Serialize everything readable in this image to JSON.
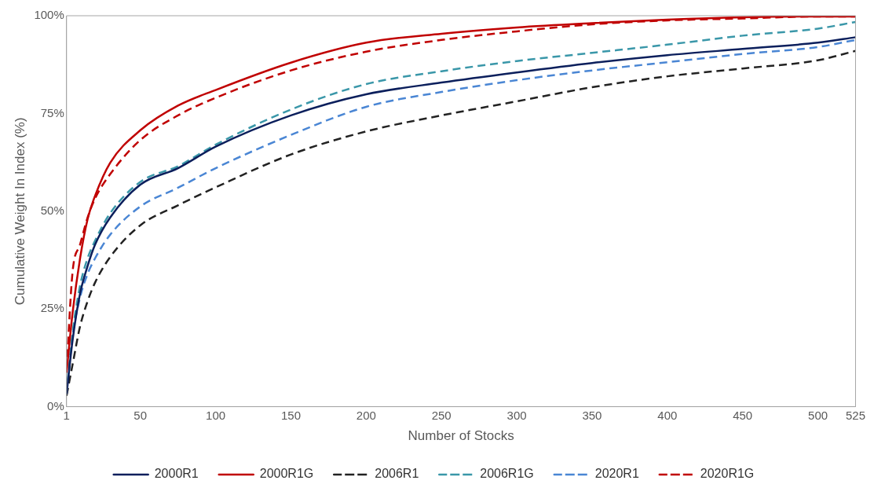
{
  "chart_data": {
    "type": "line",
    "xlabel": "Number of Stocks",
    "ylabel": "Cumulative Weight In Index (%)",
    "x": [
      1,
      5,
      10,
      15,
      20,
      30,
      50,
      75,
      100,
      150,
      200,
      250,
      300,
      350,
      400,
      450,
      500,
      525
    ],
    "xlim": [
      1,
      525
    ],
    "xticks": [
      1,
      50,
      100,
      150,
      200,
      250,
      300,
      350,
      400,
      450,
      500,
      525
    ],
    "ylim": [
      0,
      100
    ],
    "yticks": [
      {
        "value": 0,
        "label": "0%"
      },
      {
        "value": 25,
        "label": "25%"
      },
      {
        "value": 50,
        "label": "50%"
      },
      {
        "value": 75,
        "label": "75%"
      },
      {
        "value": 100,
        "label": "100%"
      }
    ],
    "grid": false,
    "legend": "bottom",
    "marker": "none",
    "series": [
      {
        "name": "2000R1",
        "color": "#0b1f5c",
        "line_style": "solid",
        "values": [
          3.2,
          17,
          29,
          36,
          41.5,
          48.4,
          56.8,
          61,
          66.5,
          74.5,
          79.9,
          82.9,
          85.5,
          87.9,
          89.9,
          91.5,
          93.1,
          94.5
        ]
      },
      {
        "name": "2000R1G",
        "color": "#c00000",
        "line_style": "solid",
        "values": [
          8.7,
          24,
          38,
          48,
          54,
          62.4,
          70.7,
          77,
          81,
          88,
          93.1,
          95.4,
          97,
          98.1,
          99,
          99.6,
          99.8,
          99.8
        ]
      },
      {
        "name": "2006R1",
        "color": "#222222",
        "line_style": "dashed",
        "values": [
          2.8,
          10.8,
          20.6,
          27,
          31.8,
          38.3,
          46.4,
          51.5,
          56.1,
          64.5,
          70.4,
          74.5,
          78.1,
          81.7,
          84.5,
          86.5,
          88.6,
          91
        ]
      },
      {
        "name": "2006R1G",
        "color": "#3a97a9",
        "line_style": "dashed",
        "values": [
          3.5,
          19,
          31,
          38,
          42.5,
          49.5,
          57.5,
          61.5,
          67,
          76,
          82.5,
          85.8,
          88.4,
          90.5,
          92.6,
          94.9,
          96.7,
          98.4
        ]
      },
      {
        "name": "2020R1",
        "color": "#4a86d4",
        "line_style": "dashed",
        "values": [
          3,
          18,
          28,
          34,
          38,
          44,
          51.2,
          56,
          61,
          69.5,
          76.7,
          80.5,
          83.5,
          86,
          88.1,
          90.2,
          92,
          93.8
        ]
      },
      {
        "name": "2020R1G",
        "color": "#c00000",
        "line_style": "dashed",
        "values": [
          9.5,
          34.5,
          41.5,
          48.4,
          53.3,
          59.5,
          68.2,
          74.5,
          79,
          86,
          90.8,
          93.8,
          96,
          97.8,
          98.8,
          99.3,
          99.8,
          99.8
        ]
      }
    ]
  }
}
